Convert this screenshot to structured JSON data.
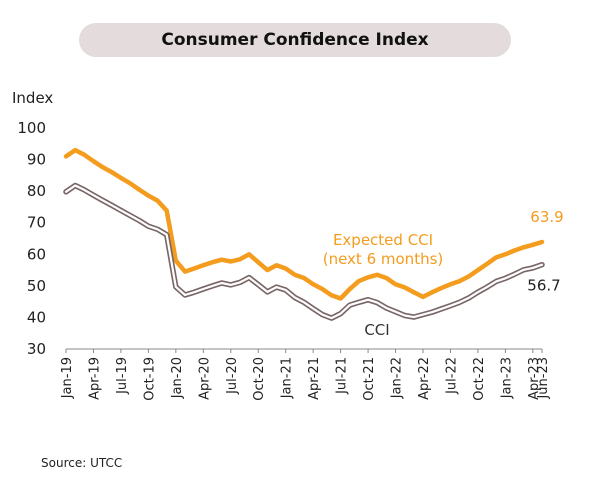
{
  "chart_data": {
    "type": "line",
    "title": "Consumer Confidence Index",
    "ylabel": "Index",
    "ylim": [
      30,
      100
    ],
    "yticks": [
      30,
      40,
      50,
      60,
      70,
      80,
      90,
      100
    ],
    "x_tick_labels": [
      "Jan-19",
      "Apr-19",
      "Jul-19",
      "Oct-19",
      "Jan-20",
      "Apr-20",
      "Jul-20",
      "Oct-20",
      "Jan-21",
      "Apr-21",
      "Jul-21",
      "Oct-21",
      "Jan-22",
      "Apr-22",
      "Jul-22",
      "Oct-22",
      "Jan-23",
      "Apr-23",
      "Jun-23"
    ],
    "grid": false,
    "series": [
      {
        "name": "Expected CCI (next 6 months)",
        "name_lines": [
          "Expected CCI",
          "(next 6 months)"
        ],
        "color": "#f39c1e",
        "end_label": "63.9",
        "values": [
          91.0,
          93.0,
          91.5,
          89.5,
          87.6,
          86.0,
          84.2,
          82.5,
          80.5,
          78.6,
          77.0,
          73.8,
          58.0,
          54.5,
          55.5,
          56.5,
          57.5,
          58.3,
          57.7,
          58.4,
          60.0,
          57.5,
          55.0,
          56.5,
          55.5,
          53.5,
          52.5,
          50.5,
          49.0,
          47.0,
          46.0,
          49.0,
          51.5,
          52.7,
          53.5,
          52.5,
          50.5,
          49.5,
          48.0,
          46.5,
          48.0,
          49.3,
          50.5,
          51.5,
          53.0,
          55.0,
          57.0,
          59.0,
          60.0,
          61.2,
          62.2,
          63.0,
          63.9
        ]
      },
      {
        "name": "CCI",
        "name_lines": [
          "CCI"
        ],
        "color": "#7a6666",
        "end_label": "56.7",
        "values": [
          79.8,
          81.8,
          80.4,
          78.7,
          77.1,
          75.5,
          73.9,
          72.3,
          70.7,
          68.9,
          67.9,
          66.2,
          49.7,
          47.1,
          48.0,
          49.0,
          50.0,
          50.9,
          50.3,
          51.1,
          52.6,
          50.4,
          48.1,
          49.6,
          48.7,
          46.3,
          44.8,
          42.8,
          40.9,
          39.8,
          41.2,
          43.9,
          44.8,
          45.6,
          44.7,
          43.0,
          41.8,
          40.6,
          40.1,
          40.9,
          41.7,
          42.7,
          43.7,
          44.8,
          46.2,
          48.0,
          49.6,
          51.4,
          52.4,
          53.7,
          55.1,
          55.7,
          56.7
        ]
      }
    ]
  },
  "source": "Source: UTCC"
}
